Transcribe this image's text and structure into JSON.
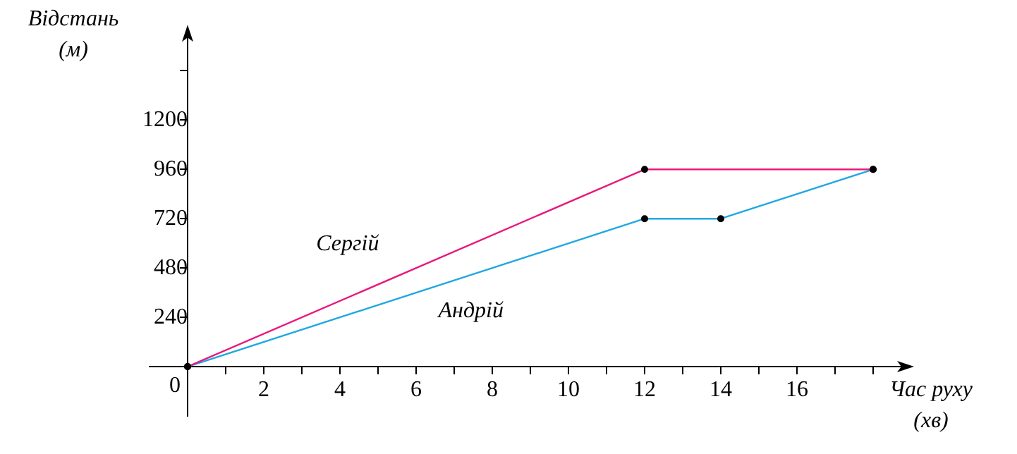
{
  "chart_data": {
    "type": "line",
    "xlabel": "Час руху (хв)",
    "ylabel": "Відстань (м)",
    "xlim": [
      -1,
      19
    ],
    "ylim": [
      -240,
      1650
    ],
    "xticks": [
      {
        "value": 0,
        "label": "0"
      },
      {
        "value": 1,
        "label": null
      },
      2,
      {
        "value": 3,
        "label": null
      },
      4,
      {
        "value": 5,
        "label": null
      },
      6,
      {
        "value": 7,
        "label": null
      },
      8,
      {
        "value": 9,
        "label": null
      },
      10,
      {
        "value": 11,
        "label": null
      },
      12,
      {
        "value": 13,
        "label": null
      },
      14,
      {
        "value": 15,
        "label": null
      },
      16,
      {
        "value": 17,
        "label": null
      },
      {
        "value": 18,
        "label": null
      }
    ],
    "yticks": [
      240,
      480,
      720,
      960,
      1200,
      {
        "value": 1440,
        "label": null
      }
    ],
    "series": [
      {
        "name": "Сергій",
        "color": "#e8187c",
        "x": [
          0,
          12,
          18
        ],
        "values": [
          0,
          960,
          960
        ]
      },
      {
        "name": "Андрій",
        "color": "#1ea8e0",
        "x": [
          0,
          12,
          14,
          18
        ],
        "values": [
          0,
          720,
          720,
          960
        ]
      }
    ],
    "marker": "circle",
    "line_style": "solid",
    "grid": false,
    "legend": false
  }
}
